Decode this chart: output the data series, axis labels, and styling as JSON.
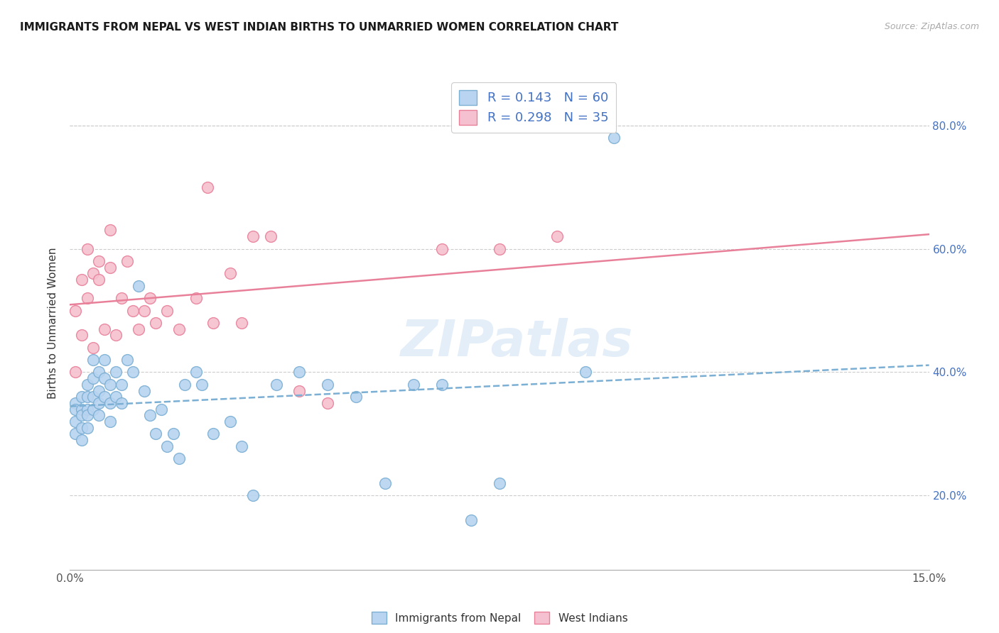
{
  "title": "IMMIGRANTS FROM NEPAL VS WEST INDIAN BIRTHS TO UNMARRIED WOMEN CORRELATION CHART",
  "source": "Source: ZipAtlas.com",
  "ylabel": "Births to Unmarried Women",
  "ytick_vals": [
    0.2,
    0.4,
    0.6,
    0.8
  ],
  "ytick_labels": [
    "20.0%",
    "40.0%",
    "60.0%",
    "80.0%"
  ],
  "xmin": 0.0,
  "xmax": 0.15,
  "ymin": 0.08,
  "ymax": 0.88,
  "nepal_color": "#b8d4f0",
  "nepal_edge": "#7bafd4",
  "westindian_color": "#f5c0cf",
  "westindian_edge": "#e8809a",
  "nepal_line_color": "#7bafd4",
  "westindian_line_color": "#e8809a",
  "legend_R1": "R = 0.143",
  "legend_N1": "N = 60",
  "legend_R2": "R = 0.298",
  "legend_N2": "N = 35",
  "legend_label1": "Immigrants from Nepal",
  "legend_label2": "West Indians",
  "watermark": "ZIPatlas",
  "nepal_x": [
    0.001,
    0.001,
    0.001,
    0.001,
    0.002,
    0.002,
    0.002,
    0.002,
    0.002,
    0.003,
    0.003,
    0.003,
    0.003,
    0.003,
    0.004,
    0.004,
    0.004,
    0.004,
    0.005,
    0.005,
    0.005,
    0.005,
    0.006,
    0.006,
    0.006,
    0.007,
    0.007,
    0.007,
    0.008,
    0.008,
    0.009,
    0.009,
    0.01,
    0.011,
    0.012,
    0.013,
    0.014,
    0.015,
    0.016,
    0.017,
    0.018,
    0.019,
    0.02,
    0.022,
    0.023,
    0.025,
    0.028,
    0.03,
    0.032,
    0.036,
    0.04,
    0.045,
    0.05,
    0.055,
    0.06,
    0.065,
    0.07,
    0.075,
    0.09,
    0.095
  ],
  "nepal_y": [
    0.35,
    0.34,
    0.32,
    0.3,
    0.36,
    0.34,
    0.33,
    0.31,
    0.29,
    0.38,
    0.36,
    0.34,
    0.33,
    0.31,
    0.42,
    0.39,
    0.36,
    0.34,
    0.4,
    0.37,
    0.35,
    0.33,
    0.42,
    0.39,
    0.36,
    0.38,
    0.35,
    0.32,
    0.4,
    0.36,
    0.38,
    0.35,
    0.42,
    0.4,
    0.54,
    0.37,
    0.33,
    0.3,
    0.34,
    0.28,
    0.3,
    0.26,
    0.38,
    0.4,
    0.38,
    0.3,
    0.32,
    0.28,
    0.2,
    0.38,
    0.4,
    0.38,
    0.36,
    0.22,
    0.38,
    0.38,
    0.16,
    0.22,
    0.4,
    0.78
  ],
  "westindian_x": [
    0.001,
    0.001,
    0.002,
    0.002,
    0.003,
    0.003,
    0.004,
    0.004,
    0.005,
    0.005,
    0.006,
    0.007,
    0.007,
    0.008,
    0.009,
    0.01,
    0.011,
    0.012,
    0.013,
    0.014,
    0.015,
    0.017,
    0.019,
    0.022,
    0.024,
    0.025,
    0.028,
    0.03,
    0.032,
    0.035,
    0.04,
    0.045,
    0.065,
    0.075,
    0.085
  ],
  "westindian_y": [
    0.4,
    0.5,
    0.46,
    0.55,
    0.52,
    0.6,
    0.56,
    0.44,
    0.58,
    0.55,
    0.47,
    0.57,
    0.63,
    0.46,
    0.52,
    0.58,
    0.5,
    0.47,
    0.5,
    0.52,
    0.48,
    0.5,
    0.47,
    0.52,
    0.7,
    0.48,
    0.56,
    0.48,
    0.62,
    0.62,
    0.37,
    0.35,
    0.6,
    0.6,
    0.62
  ]
}
